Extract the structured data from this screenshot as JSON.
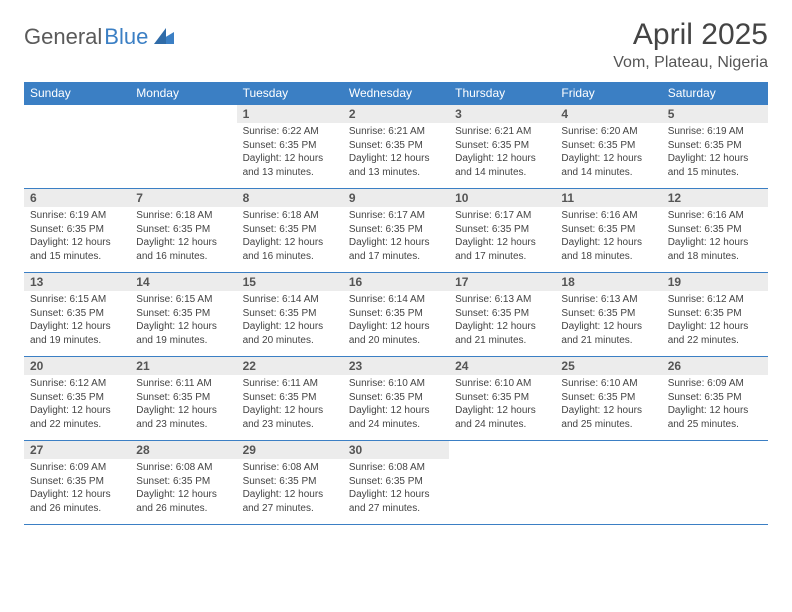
{
  "brand": {
    "part1": "General",
    "part2": "Blue"
  },
  "title": "April 2025",
  "location": "Vom, Plateau, Nigeria",
  "colors": {
    "accent": "#3b7fc4",
    "header_text": "#ffffff",
    "daynum_bg": "#ececec",
    "text": "#444444",
    "border": "#3b7fc4"
  },
  "dayHeaders": [
    "Sunday",
    "Monday",
    "Tuesday",
    "Wednesday",
    "Thursday",
    "Friday",
    "Saturday"
  ],
  "weeks": [
    [
      null,
      null,
      {
        "n": "1",
        "sr": "Sunrise: 6:22 AM",
        "ss": "Sunset: 6:35 PM",
        "d1": "Daylight: 12 hours",
        "d2": "and 13 minutes."
      },
      {
        "n": "2",
        "sr": "Sunrise: 6:21 AM",
        "ss": "Sunset: 6:35 PM",
        "d1": "Daylight: 12 hours",
        "d2": "and 13 minutes."
      },
      {
        "n": "3",
        "sr": "Sunrise: 6:21 AM",
        "ss": "Sunset: 6:35 PM",
        "d1": "Daylight: 12 hours",
        "d2": "and 14 minutes."
      },
      {
        "n": "4",
        "sr": "Sunrise: 6:20 AM",
        "ss": "Sunset: 6:35 PM",
        "d1": "Daylight: 12 hours",
        "d2": "and 14 minutes."
      },
      {
        "n": "5",
        "sr": "Sunrise: 6:19 AM",
        "ss": "Sunset: 6:35 PM",
        "d1": "Daylight: 12 hours",
        "d2": "and 15 minutes."
      }
    ],
    [
      {
        "n": "6",
        "sr": "Sunrise: 6:19 AM",
        "ss": "Sunset: 6:35 PM",
        "d1": "Daylight: 12 hours",
        "d2": "and 15 minutes."
      },
      {
        "n": "7",
        "sr": "Sunrise: 6:18 AM",
        "ss": "Sunset: 6:35 PM",
        "d1": "Daylight: 12 hours",
        "d2": "and 16 minutes."
      },
      {
        "n": "8",
        "sr": "Sunrise: 6:18 AM",
        "ss": "Sunset: 6:35 PM",
        "d1": "Daylight: 12 hours",
        "d2": "and 16 minutes."
      },
      {
        "n": "9",
        "sr": "Sunrise: 6:17 AM",
        "ss": "Sunset: 6:35 PM",
        "d1": "Daylight: 12 hours",
        "d2": "and 17 minutes."
      },
      {
        "n": "10",
        "sr": "Sunrise: 6:17 AM",
        "ss": "Sunset: 6:35 PM",
        "d1": "Daylight: 12 hours",
        "d2": "and 17 minutes."
      },
      {
        "n": "11",
        "sr": "Sunrise: 6:16 AM",
        "ss": "Sunset: 6:35 PM",
        "d1": "Daylight: 12 hours",
        "d2": "and 18 minutes."
      },
      {
        "n": "12",
        "sr": "Sunrise: 6:16 AM",
        "ss": "Sunset: 6:35 PM",
        "d1": "Daylight: 12 hours",
        "d2": "and 18 minutes."
      }
    ],
    [
      {
        "n": "13",
        "sr": "Sunrise: 6:15 AM",
        "ss": "Sunset: 6:35 PM",
        "d1": "Daylight: 12 hours",
        "d2": "and 19 minutes."
      },
      {
        "n": "14",
        "sr": "Sunrise: 6:15 AM",
        "ss": "Sunset: 6:35 PM",
        "d1": "Daylight: 12 hours",
        "d2": "and 19 minutes."
      },
      {
        "n": "15",
        "sr": "Sunrise: 6:14 AM",
        "ss": "Sunset: 6:35 PM",
        "d1": "Daylight: 12 hours",
        "d2": "and 20 minutes."
      },
      {
        "n": "16",
        "sr": "Sunrise: 6:14 AM",
        "ss": "Sunset: 6:35 PM",
        "d1": "Daylight: 12 hours",
        "d2": "and 20 minutes."
      },
      {
        "n": "17",
        "sr": "Sunrise: 6:13 AM",
        "ss": "Sunset: 6:35 PM",
        "d1": "Daylight: 12 hours",
        "d2": "and 21 minutes."
      },
      {
        "n": "18",
        "sr": "Sunrise: 6:13 AM",
        "ss": "Sunset: 6:35 PM",
        "d1": "Daylight: 12 hours",
        "d2": "and 21 minutes."
      },
      {
        "n": "19",
        "sr": "Sunrise: 6:12 AM",
        "ss": "Sunset: 6:35 PM",
        "d1": "Daylight: 12 hours",
        "d2": "and 22 minutes."
      }
    ],
    [
      {
        "n": "20",
        "sr": "Sunrise: 6:12 AM",
        "ss": "Sunset: 6:35 PM",
        "d1": "Daylight: 12 hours",
        "d2": "and 22 minutes."
      },
      {
        "n": "21",
        "sr": "Sunrise: 6:11 AM",
        "ss": "Sunset: 6:35 PM",
        "d1": "Daylight: 12 hours",
        "d2": "and 23 minutes."
      },
      {
        "n": "22",
        "sr": "Sunrise: 6:11 AM",
        "ss": "Sunset: 6:35 PM",
        "d1": "Daylight: 12 hours",
        "d2": "and 23 minutes."
      },
      {
        "n": "23",
        "sr": "Sunrise: 6:10 AM",
        "ss": "Sunset: 6:35 PM",
        "d1": "Daylight: 12 hours",
        "d2": "and 24 minutes."
      },
      {
        "n": "24",
        "sr": "Sunrise: 6:10 AM",
        "ss": "Sunset: 6:35 PM",
        "d1": "Daylight: 12 hours",
        "d2": "and 24 minutes."
      },
      {
        "n": "25",
        "sr": "Sunrise: 6:10 AM",
        "ss": "Sunset: 6:35 PM",
        "d1": "Daylight: 12 hours",
        "d2": "and 25 minutes."
      },
      {
        "n": "26",
        "sr": "Sunrise: 6:09 AM",
        "ss": "Sunset: 6:35 PM",
        "d1": "Daylight: 12 hours",
        "d2": "and 25 minutes."
      }
    ],
    [
      {
        "n": "27",
        "sr": "Sunrise: 6:09 AM",
        "ss": "Sunset: 6:35 PM",
        "d1": "Daylight: 12 hours",
        "d2": "and 26 minutes."
      },
      {
        "n": "28",
        "sr": "Sunrise: 6:08 AM",
        "ss": "Sunset: 6:35 PM",
        "d1": "Daylight: 12 hours",
        "d2": "and 26 minutes."
      },
      {
        "n": "29",
        "sr": "Sunrise: 6:08 AM",
        "ss": "Sunset: 6:35 PM",
        "d1": "Daylight: 12 hours",
        "d2": "and 27 minutes."
      },
      {
        "n": "30",
        "sr": "Sunrise: 6:08 AM",
        "ss": "Sunset: 6:35 PM",
        "d1": "Daylight: 12 hours",
        "d2": "and 27 minutes."
      },
      null,
      null,
      null
    ]
  ]
}
